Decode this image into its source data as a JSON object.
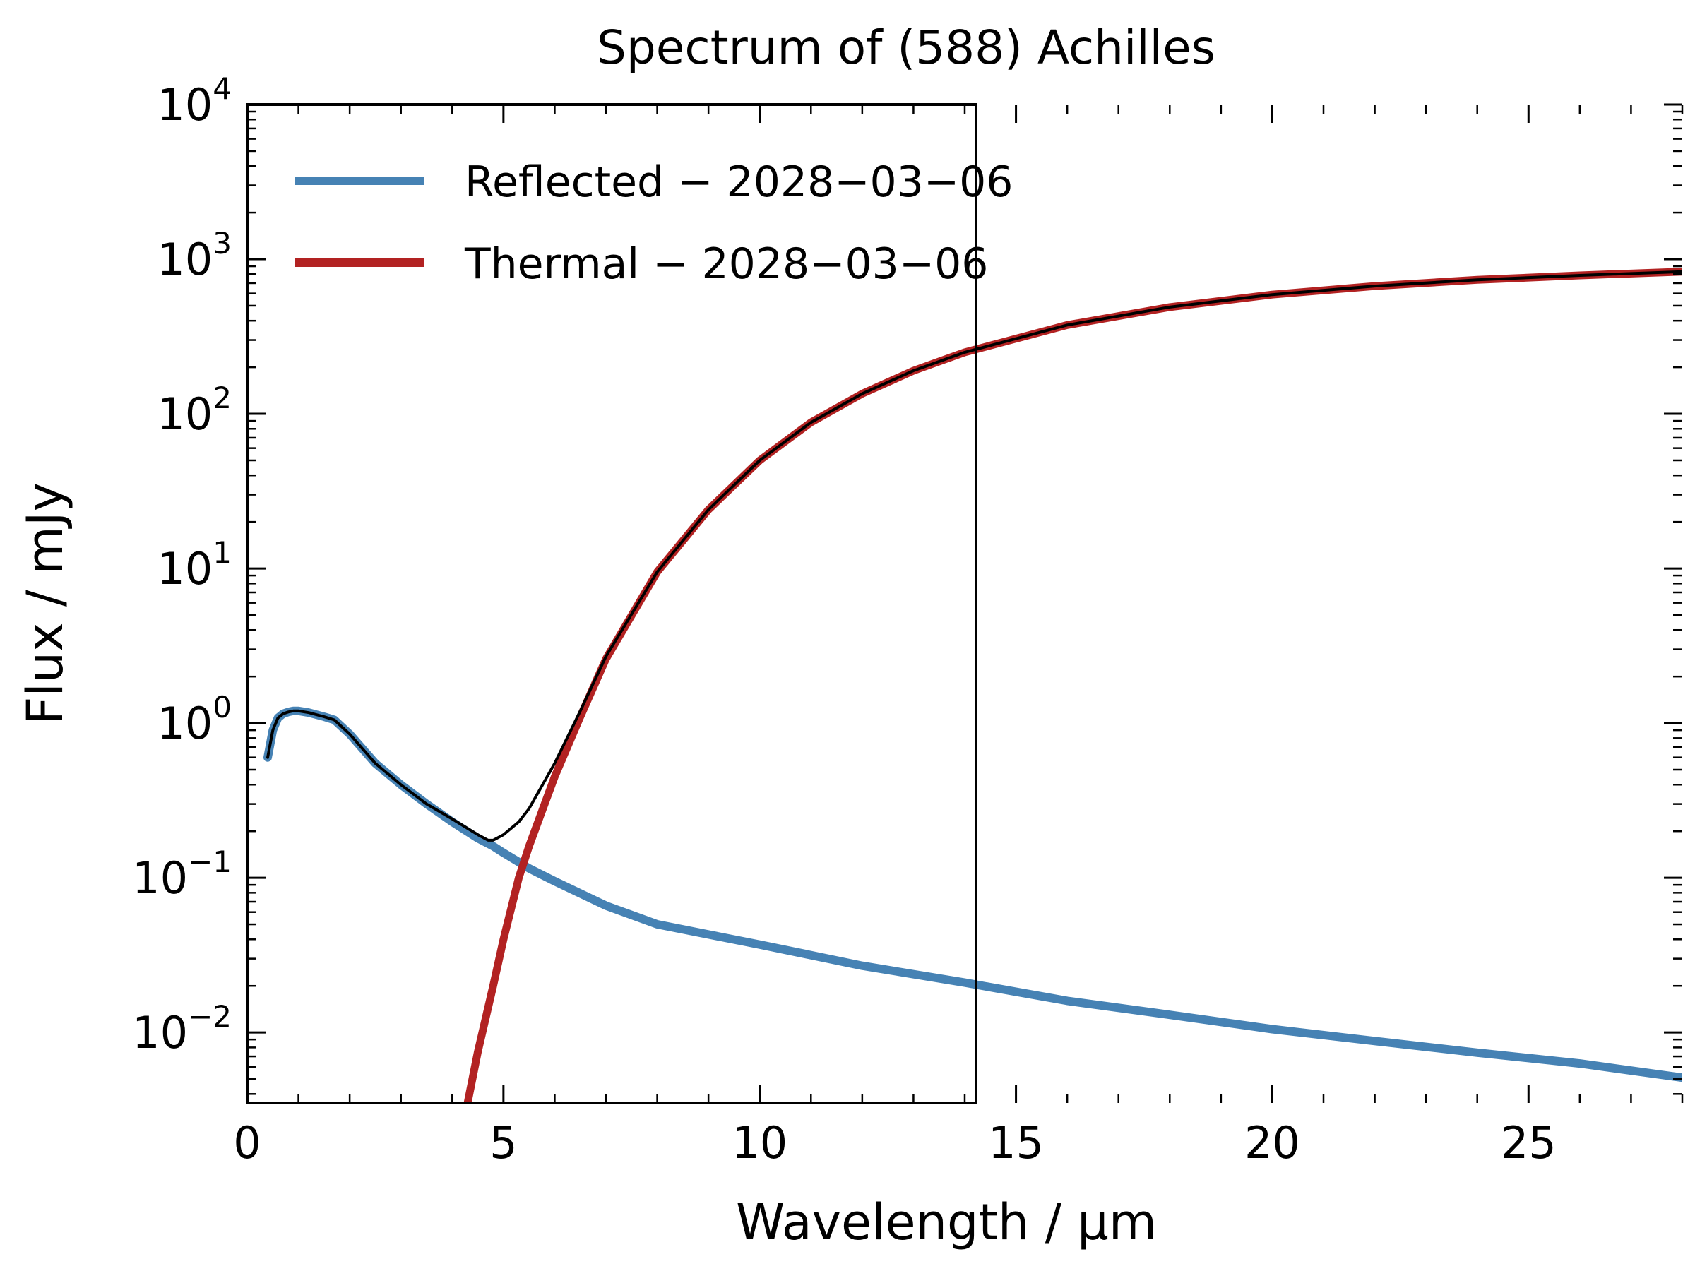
{
  "chart_data": {
    "type": "line",
    "title": "Spectrum of (588) Achilles",
    "xlabel": "Wavelength / µm",
    "ylabel": "Flux / mJy",
    "xlim": [
      0,
      28
    ],
    "ylim": [
      0.0035,
      10000
    ],
    "yscale": "log",
    "grid": false,
    "legend_position": "top-left",
    "x_ticks": [
      {
        "value": 0,
        "label": "0"
      },
      {
        "value": 5,
        "label": "5"
      },
      {
        "value": 10,
        "label": "10"
      },
      {
        "value": 15,
        "label": "15"
      },
      {
        "value": 20,
        "label": "20"
      },
      {
        "value": 25,
        "label": "25"
      }
    ],
    "y_ticks": [
      {
        "value": 0.01,
        "base": "10",
        "exp": "−2"
      },
      {
        "value": 0.1,
        "base": "10",
        "exp": "−1"
      },
      {
        "value": 1,
        "base": "10",
        "exp": "0"
      },
      {
        "value": 10,
        "base": "10",
        "exp": "1"
      },
      {
        "value": 100,
        "base": "10",
        "exp": "2"
      },
      {
        "value": 1000,
        "base": "10",
        "exp": "3"
      },
      {
        "value": 10000,
        "base": "10",
        "exp": "4"
      }
    ],
    "series": [
      {
        "name": "Reflected − 2028−03−06",
        "color": "#4682b4",
        "x": [
          0.4,
          0.5,
          0.6,
          0.7,
          0.8,
          0.9,
          1.0,
          1.2,
          1.5,
          1.7,
          2.0,
          2.5,
          3.0,
          3.5,
          4.0,
          4.5,
          4.8,
          5.0,
          5.5,
          6.0,
          7.0,
          8.0,
          9.0,
          10.0,
          12.0,
          14.0,
          16.0,
          18.0,
          20.0,
          22.0,
          24.0,
          26.0,
          28.0
        ],
        "y": [
          0.6,
          0.9,
          1.08,
          1.15,
          1.18,
          1.2,
          1.2,
          1.17,
          1.1,
          1.05,
          0.85,
          0.55,
          0.4,
          0.3,
          0.23,
          0.18,
          0.16,
          0.145,
          0.115,
          0.095,
          0.066,
          0.05,
          0.043,
          0.037,
          0.027,
          0.021,
          0.016,
          0.013,
          0.0105,
          0.0088,
          0.0074,
          0.0063,
          0.0051
        ]
      },
      {
        "name": "Thermal − 2028−03−06",
        "color": "#b22222",
        "x": [
          4.3,
          4.5,
          4.8,
          5.0,
          5.3,
          5.5,
          6.0,
          6.5,
          7.0,
          8.0,
          9.0,
          10.0,
          11.0,
          12.0,
          13.0,
          14.0,
          16.0,
          18.0,
          20.0,
          22.0,
          24.0,
          26.0,
          28.0
        ],
        "y": [
          0.0035,
          0.0075,
          0.02,
          0.04,
          0.1,
          0.16,
          0.45,
          1.1,
          2.6,
          9.5,
          24,
          50,
          88,
          135,
          190,
          250,
          375,
          490,
          590,
          670,
          735,
          785,
          830
        ]
      },
      {
        "name": "",
        "color": "#000000",
        "x": [
          0.4,
          0.5,
          0.6,
          0.7,
          0.8,
          0.9,
          1.0,
          1.2,
          1.5,
          1.7,
          2.0,
          2.5,
          3.0,
          3.5,
          4.0,
          4.5,
          4.7,
          4.8,
          5.0,
          5.3,
          5.5,
          6.0,
          6.5,
          7.0,
          8.0,
          9.0,
          10.0,
          11.0,
          12.0,
          13.0,
          14.0,
          16.0,
          18.0,
          20.0,
          22.0,
          24.0,
          26.0,
          28.0
        ],
        "y": [
          0.6,
          0.9,
          1.08,
          1.15,
          1.18,
          1.2,
          1.2,
          1.17,
          1.1,
          1.05,
          0.85,
          0.55,
          0.4,
          0.3,
          0.24,
          0.19,
          0.175,
          0.175,
          0.19,
          0.23,
          0.28,
          0.55,
          1.2,
          2.7,
          9.5,
          24,
          50,
          88,
          135,
          190,
          250,
          375,
          490,
          590,
          670,
          735,
          785,
          830
        ]
      }
    ]
  }
}
